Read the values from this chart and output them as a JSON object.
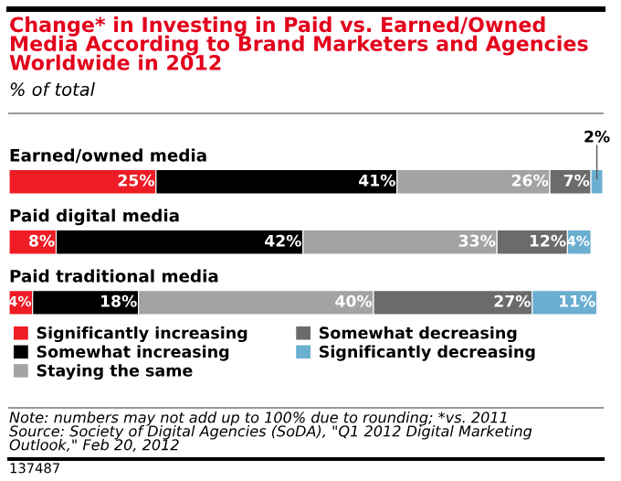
{
  "chart_data": {
    "type": "bar",
    "orientation": "horizontal",
    "stacked": true,
    "legend": "bottom",
    "title": "Change* in Investing in Paid vs. Earned/Owned Media According to Brand Marketers and Agencies Worldwide in 2012",
    "subtitle": "% of total",
    "categories": [
      "Earned/owned media",
      "Paid digital media",
      "Paid traditional media"
    ],
    "series": [
      {
        "name": "Significantly increasing",
        "color": "#ee1c25",
        "values": [
          25,
          8,
          4
        ],
        "value_labels": [
          "25%",
          "8%",
          "4%"
        ]
      },
      {
        "name": "Somewhat increasing",
        "color": "#000000",
        "values": [
          41,
          42,
          18
        ],
        "value_labels": [
          "41%",
          "42%",
          "18%"
        ]
      },
      {
        "name": "Staying the same",
        "color": "#a3a3a3",
        "values": [
          26,
          33,
          40
        ],
        "value_labels": [
          "26%",
          "33%",
          "40%"
        ]
      },
      {
        "name": "Somewhat decreasing",
        "color": "#6b6b6b",
        "values": [
          7,
          12,
          27
        ],
        "value_labels": [
          "7%",
          "12%",
          "27%"
        ]
      },
      {
        "name": "Significantly decreasing",
        "color": "#6aaed0",
        "values": [
          2,
          4,
          11
        ],
        "value_labels": [
          "2%",
          "4%",
          "11%"
        ]
      }
    ],
    "annotations": [
      "Note: numbers may not add up to 100% due to rounding; *vs. 2011\nSource: Society of Digital Agencies (SoDA), \"Q1 2012 Digital Marketing\nOutlook,\" Feb 20, 2012",
      "137487"
    ]
  }
}
